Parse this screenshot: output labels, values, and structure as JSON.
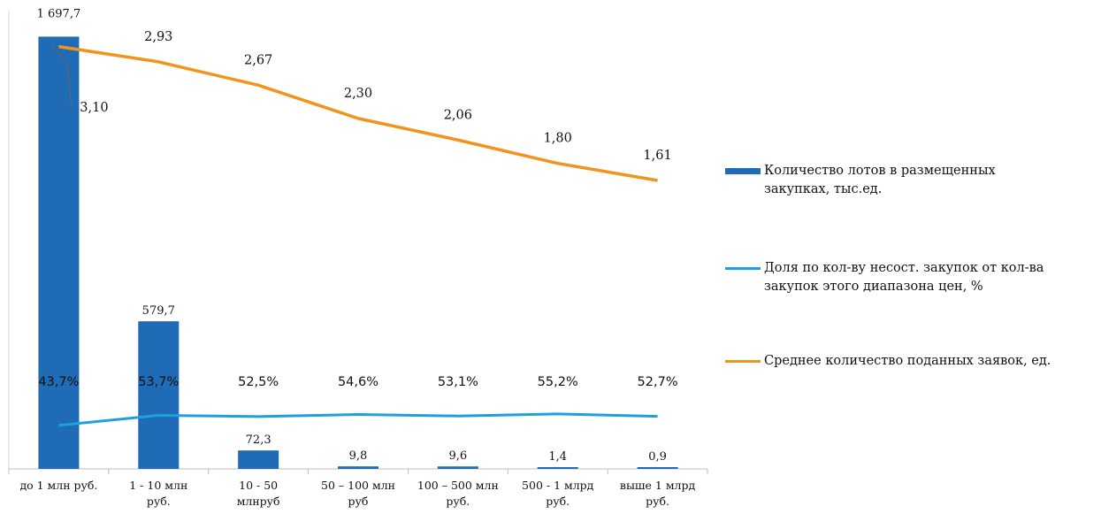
{
  "chart_data": {
    "type": "bar",
    "categories": [
      [
        "до 1 млн руб."
      ],
      [
        "1 - 10 млн",
        "руб."
      ],
      [
        "10 - 50",
        "млнруб"
      ],
      [
        "50 – 100 млн",
        "руб"
      ],
      [
        "100 – 500 млн",
        "руб."
      ],
      [
        "500 - 1 млрд",
        "руб."
      ],
      [
        "выше 1 млрд",
        "руб."
      ]
    ],
    "series": [
      {
        "name": "Количество лотов в размещенных закупках, тыс.ед.",
        "type": "bar",
        "axis": "left",
        "color": "#1F6BB5",
        "values": [
          1697.7,
          579.7,
          72.3,
          9.8,
          9.6,
          1.4,
          0.9
        ],
        "labels": [
          "1 697,7",
          "579,7",
          "72,3",
          "9,8",
          "9,6",
          "1,4",
          "0,9"
        ]
      },
      {
        "name": "Доля по кол-ву несост. закупок от кол-ва закупок этого диапазона цен, %",
        "type": "line",
        "axis": "right",
        "color": "#1EA0E0",
        "values": [
          43.7,
          53.7,
          52.5,
          54.6,
          53.1,
          55.2,
          52.7
        ],
        "labels": [
          "43,7%",
          "53,7%",
          "52,5%",
          "54,6%",
          "53,1%",
          "55,2%",
          "52,7%"
        ]
      },
      {
        "name": "Среднее количество поданных заявок, ед.",
        "type": "line",
        "axis": "right2",
        "color": "#F2931E",
        "values": [
          3.1,
          2.93,
          2.67,
          2.3,
          2.06,
          1.8,
          1.61
        ],
        "labels": [
          "3,10",
          "2,93",
          "2,67",
          "2,30",
          "2,06",
          "1,80",
          "1,61"
        ]
      }
    ],
    "ylim_bars": [
      0,
      1800
    ],
    "ylim_share": [
      0,
      460
    ],
    "ylim_avg": [
      -1.6,
      3.5
    ],
    "grid": false,
    "legend_position": "right"
  },
  "legend": [
    {
      "swatch": "bar",
      "color": "#1F6BB5",
      "lines": [
        "Количество лотов в размещенных",
        "закупках, тыс.ед."
      ]
    },
    {
      "swatch": "line",
      "color": "#1EA0E0",
      "lines": [
        "Доля по кол-ву несост. закупок от кол-ва",
        "закупок этого диапазона цен, %"
      ]
    },
    {
      "swatch": "line",
      "color": "#F2931E",
      "lines": [
        "Среднее количество поданных заявок, ед."
      ]
    }
  ]
}
